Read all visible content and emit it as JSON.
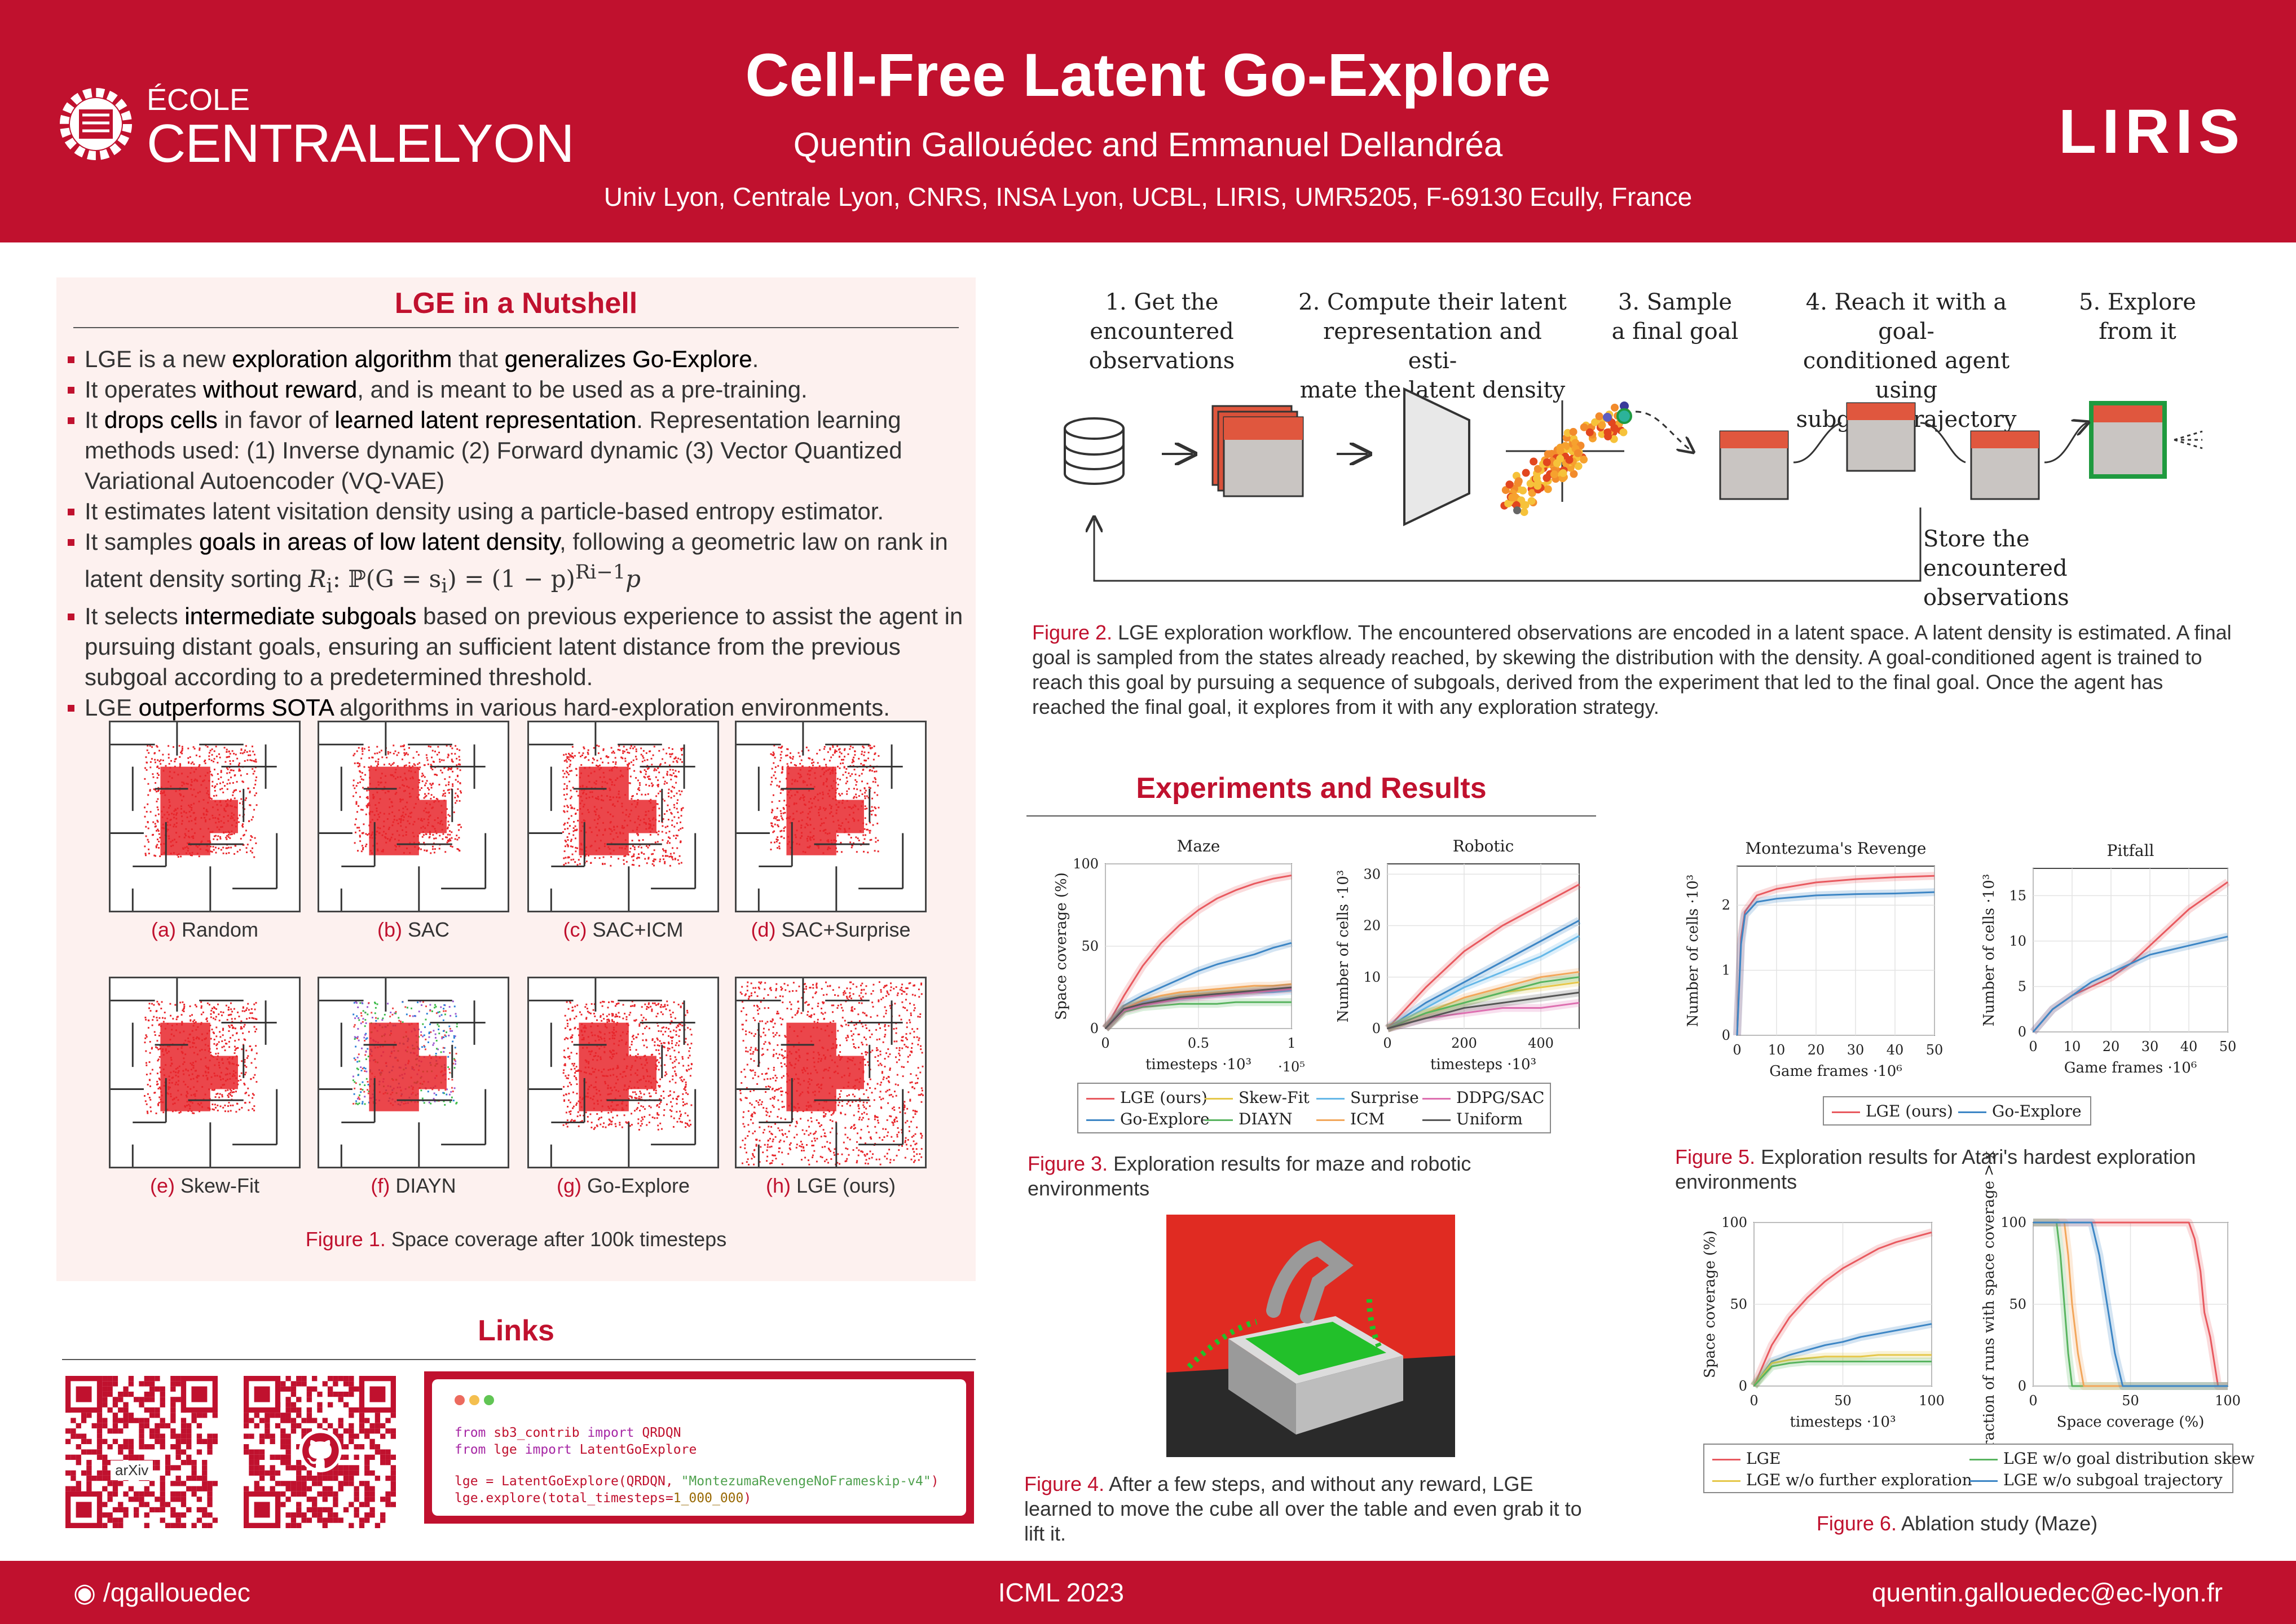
{
  "header": {
    "logo_ecole": "ÉCOLE",
    "logo_centrale": "CENTRALE",
    "logo_lyon": "LYON",
    "title": "Cell-Free Latent Go-Explore",
    "authors": "Quentin Gallouédec and Emmanuel Dellandréa",
    "affiliation": "Univ Lyon, Centrale Lyon, CNRS, INSA Lyon, UCBL, LIRIS, UMR5205, F-69130 Ecully, France",
    "logo_liris": "LIRIS"
  },
  "nutshell": {
    "title": "LGE in a Nutshell",
    "b1": [
      "LGE is a new ",
      "exploration algorithm",
      " that ",
      "generalizes Go-Explore",
      "."
    ],
    "b2": [
      "It operates ",
      "without reward",
      ", and is meant to be used as a pre-training."
    ],
    "b3": [
      "It ",
      "drops cells",
      " in favor of ",
      "learned latent representation",
      ". Representation learning methods used: (1) Inverse dynamic (2) Forward dynamic (3) Vector Quantized Variational Autoencoder (VQ-VAE)"
    ],
    "b4": "It estimates latent visitation density using a particle-based entropy estimator.",
    "b5": [
      "It samples ",
      "goals in areas of low latent density",
      ", following a geometric law on rank in latent density sorting ",
      "R",
      "i",
      ": ℙ(G = s",
      "i",
      ") = (1 − p)",
      "Ri−1",
      "p"
    ],
    "b6": [
      "It selects ",
      "intermediate subgoals",
      " based on previous experience to assist the agent in pursuing distant goals, ensuring an sufficient latent distance from the previous subgoal according to a predetermined threshold."
    ],
    "b7": [
      "LGE ",
      "outperforms SOTA",
      " algorithms in various hard-exploration environments."
    ],
    "mazes": [
      {
        "lab": "(a)",
        "name": "Random"
      },
      {
        "lab": "(b)",
        "name": "SAC"
      },
      {
        "lab": "(c)",
        "name": "SAC+ICM"
      },
      {
        "lab": "(d)",
        "name": "SAC+Surprise"
      },
      {
        "lab": "(e)",
        "name": "Skew-Fit"
      },
      {
        "lab": "(f)",
        "name": "DIAYN"
      },
      {
        "lab": "(g)",
        "name": "Go-Explore"
      },
      {
        "lab": "(h)",
        "name": "LGE (ours)"
      }
    ],
    "fig1_lab": "Figure 1.",
    "fig1_text": " Space coverage after 100k timesteps"
  },
  "links": {
    "title": "Links",
    "arxiv": "arXiv",
    "code": [
      [
        "from",
        " sb3_contrib ",
        "import",
        " QRDQN"
      ],
      [
        "from",
        " lge ",
        "import",
        " LatentGoExplore"
      ],
      [
        "lge = LatentGoExplore(QRDQN, ",
        "\"MontezumaRevengeNoFrameskip-v4\"",
        ")"
      ],
      [
        "lge.explore(total_timesteps=",
        "1_000_000",
        ")"
      ]
    ]
  },
  "workflow": {
    "steps": [
      [
        "1.  Get the",
        "encountered",
        "observations"
      ],
      [
        "2.  Compute their latent",
        "representation and esti-",
        "mate the latent density"
      ],
      [
        "3.  Sample",
        "a final goal"
      ],
      [
        "4.  Reach it with a goal-",
        "conditioned agent using",
        "subgoals trajectory"
      ],
      [
        "5.  Explore",
        "from it"
      ]
    ],
    "store": [
      "Store the",
      "encountered",
      "observations"
    ],
    "fig2_lab": "Figure 2.",
    "fig2_text": " LGE exploration workflow. The encountered observations are encoded in a latent space. A latent density is estimated. A final goal is sampled from the states already reached, by skewing the distribution with the density. A goal-conditioned agent is trained to reach this goal by pursuing a sequence of subgoals, derived from the experiment that led to the final goal. Once the agent has reached the final goal, it explores from it with any exploration strategy."
  },
  "experiments": {
    "title": "Experiments and Results",
    "fig3_lab": "Figure 3.",
    "fig3_text": " Exploration results for maze and robotic environments",
    "fig4_lab": "Figure 4.",
    "fig4_text": " After a few steps, and without any reward, LGE learned to move the cube all over the table and even grab it to lift it.",
    "fig5_lab": "Figure 5.",
    "fig5_text": " Exploration results for Atari's hardest exploration environments",
    "fig6_lab": "Figure 6.",
    "fig6_text": " Ablation study (Maze)",
    "legend3": [
      "LGE (ours)",
      "Go-Explore",
      "Skew-Fit",
      "DIAYN",
      "Surprise",
      "ICM",
      "DDPG/SAC",
      "Uniform"
    ],
    "legend5": [
      "LGE (ours)",
      "Go-Explore"
    ],
    "legend6": [
      "LGE",
      "LGE w/o further exploration",
      "LGE w/o goal distribution skew",
      "LGE w/o subgoal trajectory"
    ]
  },
  "chart_data": [
    {
      "type": "line",
      "title": "Maze",
      "xlabel": "timesteps ·10³",
      "x_multiplier_label": "·10⁵",
      "ylabel": "Space coverage (%)",
      "xlim": [
        0,
        1
      ],
      "ylim": [
        0,
        100
      ],
      "xticks": [
        "0",
        "0.5",
        "1"
      ],
      "yticks": [
        "0",
        "50",
        "100"
      ],
      "x": [
        0,
        0.1,
        0.2,
        0.3,
        0.4,
        0.5,
        0.6,
        0.7,
        0.8,
        0.9,
        1.0
      ],
      "series": [
        {
          "name": "LGE (ours)",
          "color": "#e8595f",
          "values": [
            0,
            20,
            38,
            52,
            63,
            72,
            79,
            84,
            88,
            91,
            93
          ]
        },
        {
          "name": "Go-Explore",
          "color": "#3d86c5",
          "values": [
            0,
            14,
            20,
            25,
            30,
            35,
            39,
            42,
            45,
            49,
            52
          ]
        },
        {
          "name": "Skew-Fit",
          "color": "#e5c74a",
          "values": [
            0,
            12,
            16,
            18,
            20,
            21,
            22,
            23,
            23,
            24,
            24
          ]
        },
        {
          "name": "DIAYN",
          "color": "#58b45f",
          "values": [
            0,
            10,
            13,
            14,
            15,
            15,
            15,
            16,
            16,
            16,
            16
          ]
        },
        {
          "name": "Surprise",
          "color": "#66b8e8",
          "values": [
            0,
            12,
            16,
            18,
            19,
            20,
            21,
            21,
            22,
            22,
            23
          ]
        },
        {
          "name": "ICM",
          "color": "#f2a65a",
          "values": [
            0,
            12,
            17,
            20,
            22,
            23,
            24,
            25,
            26,
            26,
            27
          ]
        },
        {
          "name": "DDPG/SAC",
          "color": "#dd6fb0",
          "values": [
            0,
            11,
            14,
            16,
            18,
            19,
            20,
            21,
            22,
            23,
            24
          ]
        },
        {
          "name": "Uniform",
          "color": "#555555",
          "values": [
            0,
            12,
            15,
            17,
            19,
            20,
            21,
            22,
            23,
            24,
            25
          ]
        }
      ]
    },
    {
      "type": "line",
      "title": "Robotic",
      "xlabel": "timesteps ·10³",
      "ylabel": "Number of cells ·10³",
      "xlim": [
        0,
        500
      ],
      "ylim": [
        0,
        32
      ],
      "xticks": [
        "0",
        "200",
        "400"
      ],
      "yticks": [
        "0",
        "10",
        "20",
        "30"
      ],
      "x": [
        0,
        100,
        200,
        300,
        400,
        500
      ],
      "series": [
        {
          "name": "LGE (ours)",
          "color": "#e8595f",
          "values": [
            0,
            8,
            15,
            20,
            24,
            28
          ]
        },
        {
          "name": "Go-Explore",
          "color": "#3d86c5",
          "values": [
            0,
            5,
            9,
            13,
            17,
            21
          ]
        },
        {
          "name": "Surprise",
          "color": "#66b8e8",
          "values": [
            0,
            4,
            8,
            11,
            14,
            18
          ]
        },
        {
          "name": "ICM",
          "color": "#f2a65a",
          "values": [
            0,
            3,
            6,
            8,
            10,
            11
          ]
        },
        {
          "name": "Skew-Fit",
          "color": "#e5c74a",
          "values": [
            0,
            3,
            5,
            7,
            8,
            9
          ]
        },
        {
          "name": "DIAYN",
          "color": "#58b45f",
          "values": [
            0,
            3,
            5,
            7,
            9,
            10
          ]
        },
        {
          "name": "DDPG/SAC",
          "color": "#dd6fb0",
          "values": [
            0,
            2,
            3,
            4,
            4,
            5
          ]
        },
        {
          "name": "Uniform",
          "color": "#555555",
          "values": [
            0,
            2,
            4,
            5,
            6,
            7
          ]
        }
      ]
    },
    {
      "type": "line",
      "title": "Montezuma's Revenge",
      "xlabel": "Game frames ·10⁶",
      "ylabel": "Number of cells ·10³",
      "xlim": [
        0,
        50
      ],
      "ylim": [
        0,
        2.6
      ],
      "xticks": [
        "0",
        "10",
        "20",
        "30",
        "40",
        "50"
      ],
      "yticks": [
        "0",
        "1",
        "2"
      ],
      "x": [
        0,
        1,
        2,
        5,
        10,
        20,
        30,
        40,
        50
      ],
      "series": [
        {
          "name": "LGE (ours)",
          "color": "#e8595f",
          "values": [
            0,
            1.5,
            1.9,
            2.15,
            2.25,
            2.35,
            2.4,
            2.43,
            2.45
          ]
        },
        {
          "name": "Go-Explore",
          "color": "#3d86c5",
          "values": [
            0,
            1.4,
            1.85,
            2.05,
            2.1,
            2.15,
            2.17,
            2.18,
            2.2
          ]
        }
      ]
    },
    {
      "type": "line",
      "title": "Pitfall",
      "xlabel": "Game frames ·10⁶",
      "ylabel": "Number of cells ·10³",
      "xlim": [
        0,
        50
      ],
      "ylim": [
        0,
        18
      ],
      "xticks": [
        "0",
        "10",
        "20",
        "30",
        "40",
        "50"
      ],
      "yticks": [
        "0",
        "5",
        "10",
        "15"
      ],
      "x": [
        0,
        5,
        10,
        15,
        20,
        25,
        30,
        35,
        40,
        45,
        50
      ],
      "series": [
        {
          "name": "LGE (ours)",
          "color": "#e8595f",
          "values": [
            0,
            2.5,
            4,
            5,
            6,
            7.5,
            9.5,
            11.5,
            13.5,
            15,
            16.5
          ]
        },
        {
          "name": "Go-Explore",
          "color": "#3d86c5",
          "values": [
            0,
            2.5,
            4,
            5.5,
            6.5,
            7.5,
            8.5,
            9,
            9.5,
            10,
            10.5
          ]
        }
      ]
    },
    {
      "type": "line",
      "xlabel": "timesteps ·10³",
      "ylabel": "Space coverage (%)",
      "xlim": [
        0,
        100
      ],
      "ylim": [
        0,
        100
      ],
      "xticks": [
        "0",
        "50",
        "100"
      ],
      "yticks": [
        "0",
        "50",
        "100"
      ],
      "x": [
        0,
        10,
        20,
        30,
        40,
        50,
        60,
        70,
        80,
        90,
        100
      ],
      "series": [
        {
          "name": "LGE",
          "color": "#e8595f",
          "values": [
            0,
            25,
            42,
            54,
            64,
            72,
            78,
            84,
            88,
            91,
            94
          ]
        },
        {
          "name": "LGE w/o subgoal trajectory",
          "color": "#3d86c5",
          "values": [
            0,
            15,
            19,
            22,
            25,
            27,
            30,
            32,
            34,
            36,
            38
          ]
        },
        {
          "name": "LGE w/o further exploration",
          "color": "#e5c74a",
          "values": [
            0,
            14,
            16,
            17,
            18,
            18,
            18,
            19,
            19,
            19,
            19
          ]
        },
        {
          "name": "LGE w/o goal distribution skew",
          "color": "#58b45f",
          "values": [
            0,
            12,
            14,
            15,
            15,
            15,
            15,
            15,
            15,
            15,
            15
          ]
        }
      ]
    },
    {
      "type": "line",
      "xlabel": "Space coverage (%)",
      "ylabel": "Fraction of runs with space coverage > x",
      "xlim": [
        0,
        100
      ],
      "ylim": [
        0,
        100
      ],
      "xticks": [
        "0",
        "50",
        "100"
      ],
      "yticks": [
        "0",
        "50",
        "100"
      ],
      "series": [
        {
          "name": "LGE",
          "color": "#e8595f",
          "x": [
            0,
            80,
            83,
            86,
            88,
            91,
            93,
            95,
            100
          ],
          "values": [
            100,
            100,
            90,
            70,
            45,
            30,
            15,
            0,
            0
          ]
        },
        {
          "name": "LGE w/o goal distribution skew",
          "color": "#58b45f",
          "x": [
            0,
            12,
            14,
            16,
            18,
            20,
            100
          ],
          "values": [
            100,
            100,
            80,
            50,
            20,
            0,
            0
          ]
        },
        {
          "name": "LGE w/o further exploration",
          "color": "#f2a65a",
          "x": [
            0,
            16,
            18,
            20,
            23,
            26,
            100
          ],
          "values": [
            100,
            100,
            80,
            50,
            20,
            0,
            0
          ]
        },
        {
          "name": "LGE w/o subgoal trajectory",
          "color": "#3d86c5",
          "x": [
            0,
            30,
            34,
            38,
            42,
            46,
            100
          ],
          "values": [
            100,
            100,
            80,
            50,
            20,
            0,
            0
          ]
        }
      ]
    }
  ],
  "footer": {
    "github": "/qgallouedec",
    "venue": "ICML 2023",
    "email": "quentin.gallouedec@ec-lyon.fr"
  }
}
